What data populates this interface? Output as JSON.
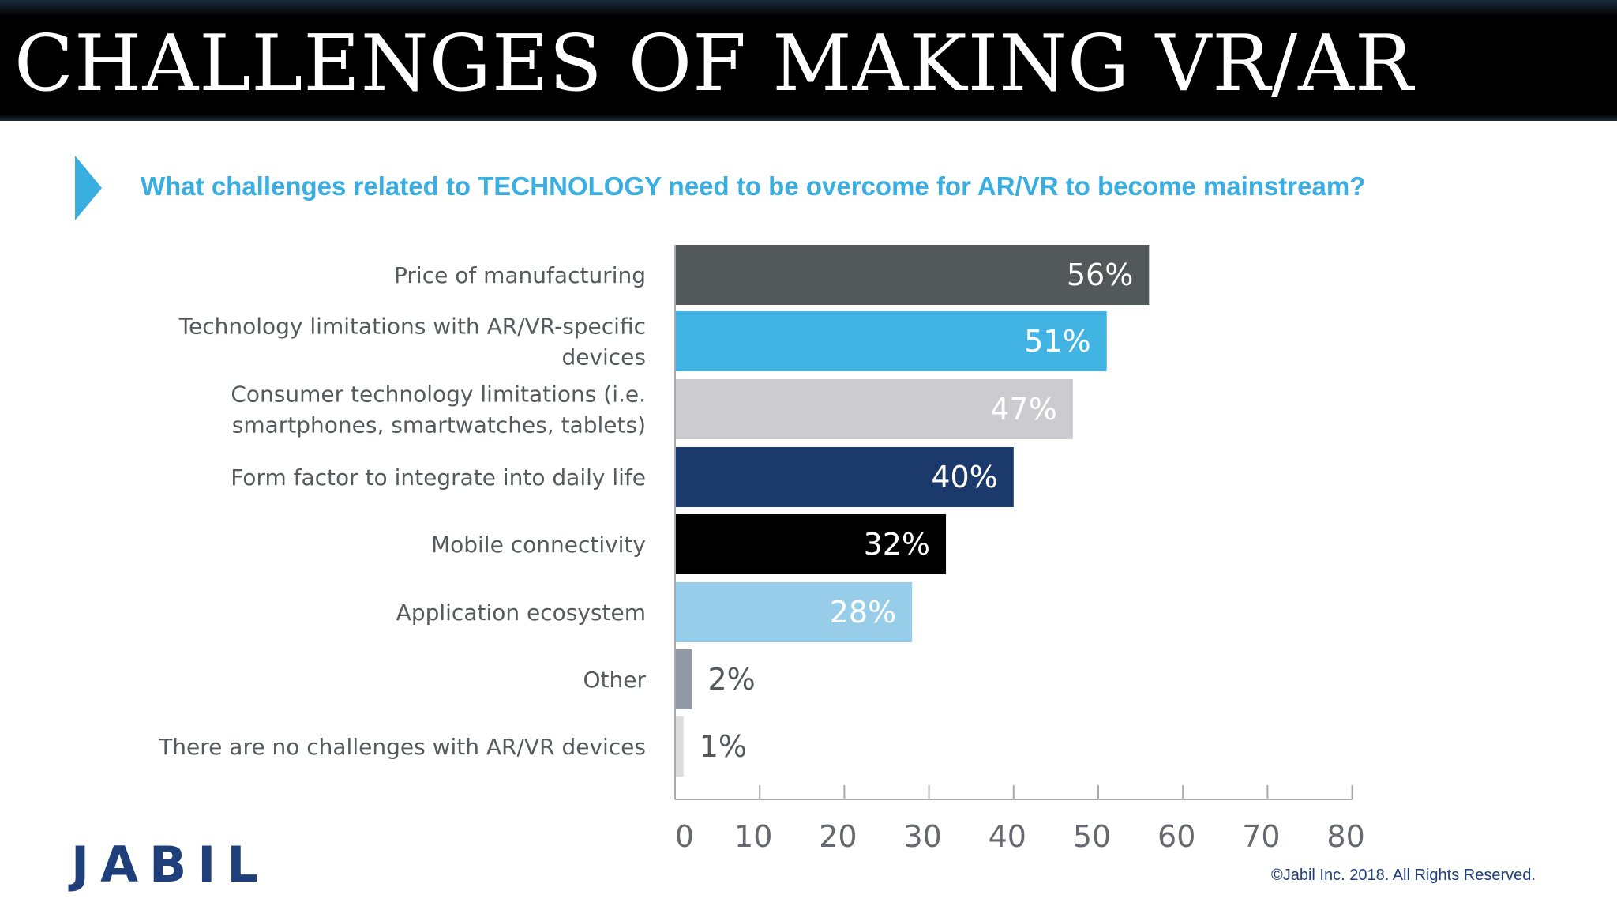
{
  "header": {
    "title": "CHALLENGES OF MAKING VR/AR"
  },
  "question": "What challenges related to TECHNOLOGY need to be overcome for AR/VR to become mainstream?",
  "chart_data": {
    "type": "bar",
    "orientation": "horizontal",
    "categories": [
      [
        "Price of manufacturing"
      ],
      [
        "Technology limitations with AR/VR-specific",
        "devices"
      ],
      [
        "Consumer technology limitations (i.e.",
        "smartphones, smartwatches, tablets)"
      ],
      [
        "Form factor to integrate into daily life"
      ],
      [
        "Mobile connectivity"
      ],
      [
        "Application ecosystem"
      ],
      [
        "Other"
      ],
      [
        "There are no challenges with AR/VR devices"
      ]
    ],
    "values": [
      56,
      51,
      47,
      40,
      32,
      28,
      2,
      1
    ],
    "value_labels": [
      "56%",
      "51%",
      "47%",
      "40%",
      "32%",
      "28%",
      "2%",
      "1%"
    ],
    "bar_colors": [
      "#53585b",
      "#41b4e4",
      "#cccbd0",
      "#1b3a6b",
      "#000000",
      "#98cdea",
      "#929aa5",
      "#dcdcde"
    ],
    "label_colors": [
      "#ffffff",
      "#ffffff",
      "#ffffff",
      "#ffffff",
      "#ffffff",
      "#ffffff",
      "#555a5f",
      "#555a5f"
    ],
    "xlim": [
      0,
      80
    ],
    "xticks": [
      0,
      10,
      20,
      30,
      40,
      50,
      60,
      70,
      80
    ],
    "xtick_labels": [
      "0",
      "10",
      "20",
      "30",
      "40",
      "50",
      "60",
      "70",
      "80"
    ],
    "grid": false,
    "title": "",
    "xlabel": "",
    "ylabel": ""
  },
  "footer": {
    "logo": "JABIL",
    "copyright": "©Jabil Inc. 2018. All Rights Reserved."
  }
}
